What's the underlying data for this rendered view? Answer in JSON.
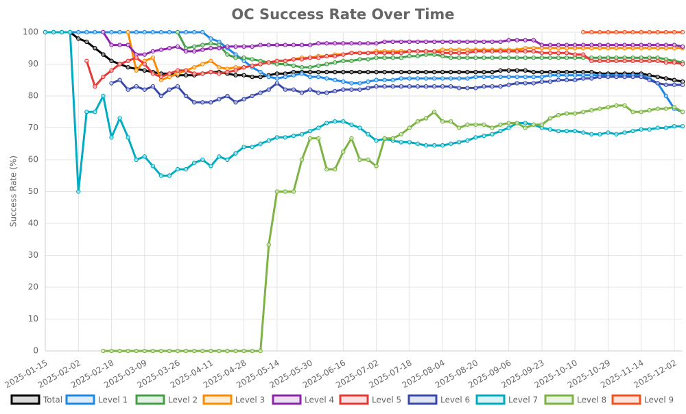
{
  "chart_data": {
    "type": "line",
    "title": "OC Success Rate Over Time",
    "y_label": "Success Rate (%)",
    "ylim": [
      0,
      100
    ],
    "yticks": [
      0,
      10,
      20,
      30,
      40,
      50,
      60,
      70,
      80,
      90,
      100
    ],
    "grid": true,
    "legend": "bottom",
    "categories": [
      "2025-01-15",
      null,
      null,
      null,
      "2025-02-02",
      null,
      null,
      null,
      "2025-02-18",
      null,
      null,
      null,
      "2025-03-09",
      null,
      null,
      null,
      "2025-03-26",
      null,
      null,
      null,
      "2025-04-11",
      null,
      null,
      null,
      "2025-04-28",
      null,
      null,
      null,
      "2025-05-14",
      null,
      null,
      null,
      "2025-05-30",
      null,
      null,
      null,
      "2025-06-16",
      null,
      null,
      null,
      "2025-07-02",
      null,
      null,
      null,
      "2025-07-18",
      null,
      null,
      null,
      "2025-08-04",
      null,
      null,
      null,
      "2025-08-20",
      null,
      null,
      null,
      "2025-09-06",
      null,
      null,
      null,
      "2025-09-23",
      null,
      null,
      null,
      "2025-10-10",
      null,
      null,
      null,
      "2025-10-29",
      null,
      null,
      null,
      "2025-11-14",
      null,
      null,
      null,
      "2025-12-02",
      null
    ],
    "series": [
      {
        "name": "Total",
        "color": "#000000",
        "values": [
          100,
          100,
          100,
          100,
          98,
          97,
          95,
          93,
          91,
          90,
          89,
          88.5,
          88,
          87.5,
          87,
          87,
          86.5,
          86.5,
          86.5,
          87,
          87.5,
          87.5,
          87,
          86.5,
          86.5,
          86,
          86,
          86.5,
          87,
          87,
          87.5,
          87.5,
          87.5,
          87.5,
          87.5,
          87.5,
          87.5,
          87.5,
          87.5,
          87.5,
          87.5,
          87.5,
          87.5,
          87.5,
          87.5,
          87.5,
          87.5,
          87.5,
          87.5,
          87.5,
          87.5,
          87.5,
          87.5,
          87.5,
          87.5,
          88,
          88,
          88,
          88,
          87.5,
          87.5,
          87.5,
          87.5,
          87.5,
          87.5,
          87.5,
          87.5,
          87,
          87,
          87,
          87,
          87,
          87,
          86.5,
          86,
          85.5,
          85,
          84.5
        ]
      },
      {
        "name": "Level 1",
        "color": "#1e88e5",
        "values": [
          100,
          100,
          100,
          100,
          100,
          100,
          100,
          100,
          100,
          100,
          100,
          100,
          100,
          100,
          100,
          100,
          100,
          100,
          100,
          100,
          98,
          97,
          95,
          93,
          91,
          89,
          87.5,
          86,
          85.5,
          86,
          86.5,
          87,
          86,
          86,
          85.5,
          85,
          84.5,
          84,
          84,
          84.5,
          85,
          85,
          85,
          85.5,
          85.5,
          85.5,
          85.5,
          85.5,
          85.5,
          85.5,
          85.5,
          85.5,
          86,
          86,
          86,
          86,
          86,
          86,
          86,
          86,
          86,
          86.5,
          86.5,
          86.5,
          86.5,
          86.5,
          86.5,
          86.5,
          86.5,
          86.5,
          86.5,
          86.5,
          86.5,
          85.5,
          84,
          80,
          76,
          75
        ]
      },
      {
        "name": "Level 2",
        "color": "#43a047",
        "values": [
          null,
          null,
          null,
          null,
          null,
          null,
          null,
          null,
          null,
          null,
          null,
          null,
          null,
          null,
          null,
          null,
          100,
          95,
          95.5,
          96,
          96.5,
          96,
          93,
          92,
          92,
          91.5,
          91,
          90.5,
          90,
          90,
          89.5,
          89,
          89,
          89.5,
          90,
          90.5,
          91,
          91,
          91.5,
          91.5,
          92,
          92,
          92,
          92,
          92.5,
          92.5,
          93,
          93,
          92.5,
          92,
          92,
          92,
          92,
          92,
          92,
          92,
          92,
          92,
          92,
          92,
          92,
          92,
          92,
          92,
          92,
          92,
          92,
          92,
          92,
          92,
          92,
          92,
          92,
          92,
          92,
          91.5,
          91,
          90.5
        ]
      },
      {
        "name": "Level 3",
        "color": "#fb8c00",
        "values": [
          null,
          null,
          null,
          null,
          null,
          null,
          null,
          null,
          null,
          null,
          100,
          88,
          91,
          92,
          85,
          86,
          87,
          88,
          89,
          90,
          91,
          89,
          88.5,
          89,
          89,
          89.5,
          90,
          90.5,
          91,
          91,
          91.5,
          92,
          92,
          92.5,
          92.5,
          93,
          93,
          93.5,
          93.5,
          93.5,
          94,
          94,
          94,
          94,
          94,
          94,
          94,
          94,
          94.5,
          94.5,
          94.5,
          94.5,
          94.5,
          94.5,
          94.5,
          94.5,
          94.5,
          94.5,
          95,
          95,
          95,
          95,
          95,
          95,
          95,
          95,
          95,
          95,
          95,
          95,
          95,
          95,
          95,
          95,
          95,
          95,
          95,
          95
        ]
      },
      {
        "name": "Level 4",
        "color": "#8e24aa",
        "values": [
          null,
          null,
          null,
          null,
          null,
          null,
          null,
          100,
          96,
          96,
          96,
          93,
          93,
          94,
          94.5,
          95,
          95.5,
          94,
          94,
          94.5,
          95,
          95,
          95.5,
          95.5,
          95.5,
          95.5,
          96,
          96,
          96,
          96,
          96,
          96,
          96,
          96.5,
          96.5,
          96.5,
          96.5,
          96.5,
          96.5,
          96.5,
          96.5,
          97,
          97,
          97,
          97,
          97,
          97,
          97,
          97,
          97,
          97,
          97,
          97,
          97,
          97,
          97,
          97.5,
          97.5,
          97.5,
          97.5,
          96,
          96,
          96,
          96,
          96,
          96,
          96,
          96,
          96,
          96,
          96,
          96,
          96,
          96,
          96,
          96,
          96,
          95.5
        ]
      },
      {
        "name": "Level 5",
        "color": "#e53935",
        "values": [
          null,
          null,
          null,
          null,
          null,
          91,
          83,
          86,
          88,
          90,
          91,
          92,
          90,
          87,
          86,
          87,
          88,
          88,
          87,
          87,
          87.5,
          87,
          87.5,
          88,
          89,
          89.5,
          90,
          90.5,
          91,
          91,
          91.5,
          91.5,
          92,
          92,
          92.5,
          92.5,
          93,
          93.5,
          93.5,
          93.5,
          93.5,
          93.5,
          93.5,
          93.5,
          94,
          94,
          94,
          94,
          93.5,
          93.5,
          93.5,
          93.5,
          94,
          94,
          94,
          94,
          94,
          94,
          94,
          94,
          93.5,
          93.5,
          93.5,
          93.5,
          93,
          93,
          91,
          91,
          91,
          91,
          91,
          91,
          91,
          91,
          91,
          90.5,
          90.5,
          90
        ]
      },
      {
        "name": "Level 6",
        "color": "#3949ab",
        "values": [
          null,
          null,
          null,
          null,
          null,
          null,
          null,
          null,
          84,
          85,
          82,
          83,
          82,
          83,
          80,
          82,
          83,
          80,
          78,
          78,
          78,
          79,
          80,
          78,
          79,
          80,
          81,
          82,
          84,
          82,
          82,
          81,
          82,
          81,
          81,
          81.5,
          82,
          82,
          82,
          82.5,
          83,
          83,
          83,
          83,
          83,
          83,
          83,
          83,
          83,
          83,
          82.5,
          82.5,
          82.5,
          83,
          83,
          83,
          83.5,
          84,
          84,
          84,
          84.5,
          84.5,
          85,
          85,
          85,
          85.5,
          85.5,
          86,
          86,
          86,
          86,
          86,
          86,
          85,
          84,
          83.5,
          83.5,
          83.5
        ]
      },
      {
        "name": "Level 7",
        "color": "#00acc1",
        "values": [
          100,
          100,
          100,
          100,
          50,
          75,
          75,
          80,
          67,
          73,
          67,
          60,
          61,
          58,
          55,
          55,
          57,
          57,
          59,
          60,
          58,
          61,
          60,
          62,
          64,
          64,
          65,
          66,
          67,
          67,
          67.5,
          68,
          69,
          70,
          71.5,
          72,
          72,
          71,
          70,
          68,
          66,
          66.5,
          66,
          65.5,
          65.5,
          65,
          64.5,
          64.5,
          64.5,
          65,
          65.5,
          66,
          67,
          67.5,
          68,
          69,
          70,
          71.5,
          71.5,
          71,
          70,
          69.5,
          69,
          69,
          69,
          68.5,
          68,
          68,
          68.5,
          68,
          68.5,
          69,
          69.5,
          69.5,
          70,
          70,
          70.5,
          70.5
        ]
      },
      {
        "name": "Level 8",
        "color": "#7cb342",
        "values": [
          null,
          null,
          null,
          null,
          null,
          null,
          null,
          0,
          0,
          0,
          0,
          0,
          0,
          0,
          0,
          0,
          0,
          0,
          0,
          0,
          0,
          0,
          0,
          0,
          0,
          0,
          0,
          33.3,
          50,
          50,
          50,
          60,
          66.7,
          66.7,
          57,
          57,
          62.5,
          66.7,
          60,
          60,
          58,
          66.7,
          66.7,
          68,
          70,
          72,
          73,
          75,
          72,
          72,
          70,
          71,
          71,
          71,
          70,
          71,
          71.5,
          71.5,
          70,
          71,
          71,
          73,
          74,
          74.5,
          74.5,
          75,
          75.5,
          76,
          76.5,
          77,
          77,
          75,
          75,
          75.5,
          76,
          76,
          76.5,
          75
        ]
      },
      {
        "name": "Level 9",
        "color": "#f4511e",
        "values": [
          null,
          null,
          null,
          null,
          null,
          null,
          null,
          null,
          null,
          null,
          null,
          null,
          null,
          null,
          null,
          null,
          null,
          null,
          null,
          null,
          null,
          null,
          null,
          null,
          null,
          null,
          null,
          null,
          null,
          null,
          null,
          null,
          null,
          null,
          null,
          null,
          null,
          null,
          null,
          null,
          null,
          null,
          null,
          null,
          null,
          null,
          null,
          null,
          null,
          null,
          null,
          null,
          null,
          null,
          null,
          null,
          null,
          null,
          null,
          null,
          null,
          null,
          null,
          null,
          null,
          100,
          100,
          100,
          100,
          100,
          100,
          100,
          100,
          100,
          100,
          100,
          100,
          100
        ]
      }
    ]
  }
}
